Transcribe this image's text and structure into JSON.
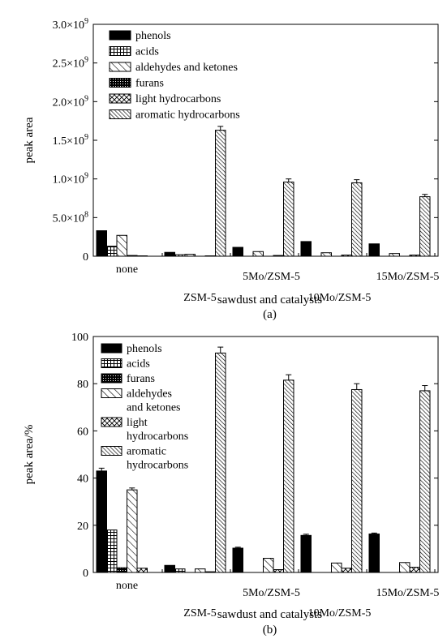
{
  "chart_data": [
    {
      "type": "bar",
      "panel_label": "(a)",
      "xlabel": "sawdust and catalysts",
      "ylabel": "peak area",
      "ylim": [
        0,
        3000000000
      ],
      "ytick_labels": [
        "0",
        "5.0×10^8",
        "1.0×10^9",
        "1.5×10^9",
        "2.0×10^9",
        "2.5×10^9",
        "3.0×10^9"
      ],
      "categories": [
        "none",
        "ZSM-5",
        "5Mo/ZSM-5",
        "10Mo/ZSM-5",
        "15Mo/ZSM-5"
      ],
      "legend_position": "top-left",
      "grid": false,
      "series": [
        {
          "name": "phenols",
          "pattern": "solid",
          "values": [
            330000000,
            50000000,
            115000000,
            190000000,
            160000000
          ]
        },
        {
          "name": "acids",
          "pattern": "grid",
          "values": [
            130000000,
            20000000,
            0,
            0,
            0
          ]
        },
        {
          "name": "aldehydes and ketones",
          "pattern": "diag-sparse",
          "values": [
            270000000,
            25000000,
            60000000,
            45000000,
            35000000
          ]
        },
        {
          "name": "furans",
          "pattern": "crosshatch",
          "values": [
            10000000,
            0,
            0,
            0,
            0
          ]
        },
        {
          "name": "light hydrocarbons",
          "pattern": "cross",
          "values": [
            5000000,
            5000000,
            10000000,
            15000000,
            15000000
          ]
        },
        {
          "name": "aromatic hydrocarbons",
          "pattern": "diag-dense",
          "values": [
            0,
            1630000000,
            960000000,
            950000000,
            770000000
          ],
          "errors": [
            0,
            50000000,
            40000000,
            40000000,
            30000000
          ]
        }
      ]
    },
    {
      "type": "bar",
      "panel_label": "(b)",
      "xlabel": "sawdust and catalysts",
      "ylabel": "peak area/%",
      "ylim": [
        0,
        100
      ],
      "ytick_labels": [
        "0",
        "20",
        "40",
        "60",
        "80",
        "100"
      ],
      "categories": [
        "none",
        "ZSM-5",
        "5Mo/ZSM-5",
        "10Mo/ZSM-5",
        "15Mo/ZSM-5"
      ],
      "legend_position": "top-left",
      "grid": false,
      "series": [
        {
          "name": "phenols",
          "legend_lines": [
            "phenols"
          ],
          "pattern": "solid",
          "values": [
            43,
            3,
            10.3,
            15.7,
            16.3
          ],
          "errors": [
            1.2,
            0,
            0.4,
            0.5,
            0.4
          ]
        },
        {
          "name": "acids",
          "legend_lines": [
            "acids"
          ],
          "pattern": "grid",
          "values": [
            18,
            1.5,
            0,
            0,
            0
          ]
        },
        {
          "name": "furans",
          "legend_lines": [
            "furans"
          ],
          "pattern": "crosshatch",
          "values": [
            2,
            0,
            0,
            0,
            0
          ]
        },
        {
          "name": "aldehydes and ketones",
          "legend_lines": [
            "aldehydes",
            "and ketones"
          ],
          "pattern": "diag-sparse",
          "values": [
            35,
            1.5,
            6,
            4,
            4.2
          ],
          "errors": [
            0.8,
            0,
            0,
            0,
            0
          ]
        },
        {
          "name": "light hydrocarbons",
          "legend_lines": [
            "light",
            "hydrocarbons"
          ],
          "pattern": "cross",
          "values": [
            1.8,
            0.3,
            1.2,
            1.8,
            2.2
          ]
        },
        {
          "name": "aromatic hydrocarbons",
          "legend_lines": [
            "aromatic",
            "hydrocarbons"
          ],
          "pattern": "diag-dense",
          "values": [
            0,
            93,
            81.5,
            77.5,
            77
          ],
          "errors": [
            0,
            2.5,
            2.3,
            2.5,
            2.2
          ]
        }
      ]
    }
  ]
}
